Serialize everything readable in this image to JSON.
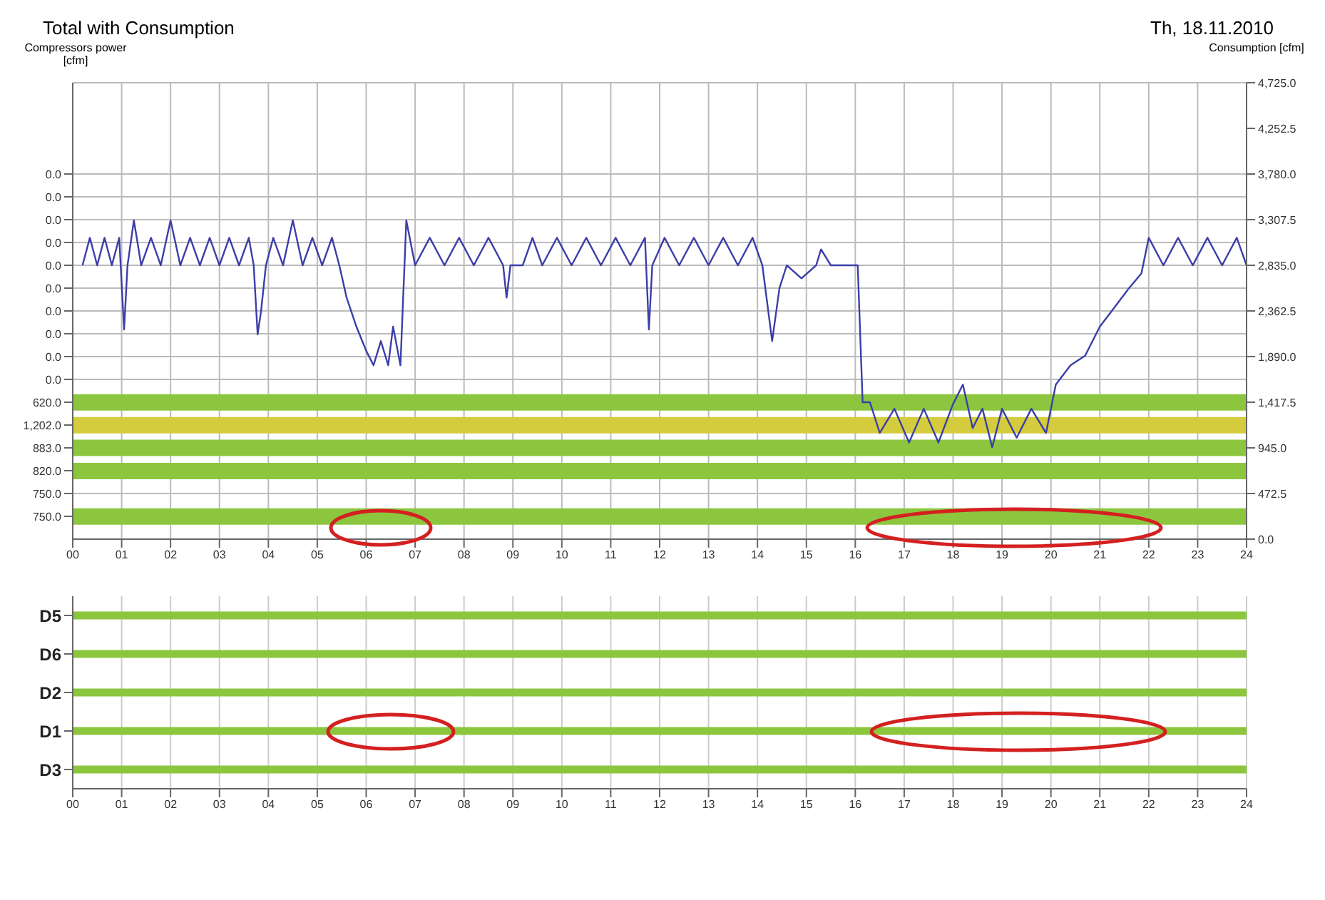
{
  "chart_data": [
    {
      "type": "line",
      "title": "Total with Consumption",
      "ylabel": "Compressors power [cfm]",
      "y2label": "Consumption [cfm]",
      "annotations": [
        "Th, 18.11.2010",
        "0.0",
        "0.0",
        "0.0",
        "0.0",
        "0.0",
        "0.0",
        "0.0",
        "0.0",
        "0.0",
        "0.0",
        "620.0",
        "1,202.0",
        "883.0",
        "820.0",
        "750.0",
        "750.0"
      ],
      "xlim": [
        0,
        24
      ],
      "xticks": [
        {
          "value": 0,
          "label": "00"
        },
        {
          "value": 1,
          "label": "01"
        },
        {
          "value": 2,
          "label": "02"
        },
        {
          "value": 3,
          "label": "03"
        },
        {
          "value": 4,
          "label": "04"
        },
        {
          "value": 5,
          "label": "05"
        },
        {
          "value": 6,
          "label": "06"
        },
        {
          "value": 7,
          "label": "07"
        },
        {
          "value": 8,
          "label": "08"
        },
        {
          "value": 9,
          "label": "09"
        },
        {
          "value": 10,
          "label": "10"
        },
        {
          "value": 11,
          "label": "11"
        },
        {
          "value": 12,
          "label": "12"
        },
        {
          "value": 13,
          "label": "13"
        },
        {
          "value": 14,
          "label": "14"
        },
        {
          "value": 15,
          "label": "15"
        },
        {
          "value": 16,
          "label": "16"
        },
        {
          "value": 17,
          "label": "17"
        },
        {
          "value": 18,
          "label": "18"
        },
        {
          "value": 19,
          "label": "19"
        },
        {
          "value": 20,
          "label": "20"
        },
        {
          "value": 21,
          "label": "21"
        },
        {
          "value": 22,
          "label": "22"
        },
        {
          "value": 23,
          "label": "23"
        },
        {
          "value": 24,
          "label": "24"
        }
      ],
      "y2lim": [
        0,
        4725
      ],
      "y2ticks": [
        {
          "value": 0,
          "label": "0.0"
        },
        {
          "value": 472.5,
          "label": "472.5"
        },
        {
          "value": 945,
          "label": "945.0"
        },
        {
          "value": 1417.5,
          "label": "1,417.5"
        },
        {
          "value": 1890,
          "label": "1,890.0"
        },
        {
          "value": 2362.5,
          "label": "2,362.5"
        },
        {
          "value": 2835,
          "label": "2,835.0"
        },
        {
          "value": 3307.5,
          "label": "3,307.5"
        },
        {
          "value": 3780,
          "label": "3,780.0"
        },
        {
          "value": 4252.5,
          "label": "4,252.5"
        },
        {
          "value": 4725,
          "label": "4,725.0"
        }
      ],
      "grid": true,
      "bands": [
        {
          "axis": "y2",
          "from": 1330,
          "to": 1500,
          "color": "#8cc63f"
        },
        {
          "axis": "y2",
          "from": 1095,
          "to": 1265,
          "color": "#d4cc3c"
        },
        {
          "axis": "y2",
          "from": 860,
          "to": 1030,
          "color": "#8cc63f"
        },
        {
          "axis": "y2",
          "from": 620,
          "to": 790,
          "color": "#8cc63f"
        },
        {
          "axis": "y2",
          "from": 150,
          "to": 320,
          "color": "#8cc63f"
        }
      ],
      "series": [
        {
          "axis": "y2",
          "color": "#3b3fa8",
          "x": [
            0.2,
            0.35,
            0.5,
            0.65,
            0.8,
            0.95,
            1.05,
            1.12,
            1.25,
            1.4,
            1.6,
            1.8,
            2.0,
            2.2,
            2.4,
            2.6,
            2.8,
            3.0,
            3.2,
            3.4,
            3.6,
            3.7,
            3.78,
            3.85,
            3.95,
            4.1,
            4.3,
            4.5,
            4.7,
            4.9,
            5.1,
            5.3,
            5.45,
            5.6,
            5.8,
            6.0,
            6.15,
            6.3,
            6.45,
            6.55,
            6.7,
            6.82,
            7.0,
            7.3,
            7.6,
            7.9,
            8.2,
            8.5,
            8.8,
            8.87,
            8.95,
            9.2,
            9.4,
            9.6,
            9.9,
            10.2,
            10.5,
            10.8,
            11.1,
            11.4,
            11.7,
            11.78,
            11.85,
            12.1,
            12.4,
            12.7,
            13.0,
            13.3,
            13.6,
            13.9,
            14.1,
            14.3,
            14.45,
            14.6,
            14.9,
            15.2,
            15.3,
            15.5,
            16.05,
            16.15,
            16.3,
            16.5,
            16.8,
            17.1,
            17.4,
            17.7,
            18.0,
            18.2,
            18.4,
            18.6,
            18.8,
            19.0,
            19.3,
            19.6,
            19.9,
            20.1,
            20.4,
            20.7,
            21.0,
            21.3,
            21.6,
            21.85,
            22.0,
            22.3,
            22.6,
            22.9,
            23.2,
            23.5,
            23.8,
            24.0
          ],
          "values": [
            2835,
            3120,
            2835,
            3120,
            2835,
            3120,
            2170,
            2835,
            3300,
            2835,
            3120,
            2835,
            3300,
            2835,
            3120,
            2835,
            3120,
            2835,
            3120,
            2835,
            3120,
            2835,
            2120,
            2360,
            2835,
            3120,
            2835,
            3300,
            2835,
            3120,
            2835,
            3120,
            2835,
            2500,
            2200,
            1950,
            1800,
            2050,
            1800,
            2200,
            1800,
            3300,
            2835,
            3120,
            2835,
            3120,
            2835,
            3120,
            2835,
            2500,
            2835,
            2835,
            3120,
            2835,
            3120,
            2835,
            3120,
            2835,
            3120,
            2835,
            3120,
            2170,
            2835,
            3120,
            2835,
            3120,
            2835,
            3120,
            2835,
            3120,
            2835,
            2050,
            2600,
            2835,
            2700,
            2835,
            3000,
            2835,
            2835,
            1417,
            1417,
            1100,
            1350,
            1000,
            1350,
            1000,
            1400,
            1600,
            1150,
            1350,
            950,
            1350,
            1050,
            1350,
            1100,
            1600,
            1800,
            1900,
            2200,
            2400,
            2600,
            2750,
            3120,
            2835,
            3120,
            2835,
            3120,
            2835,
            3120,
            2835
          ]
        }
      ]
    },
    {
      "type": "bar",
      "orientation": "horizontal",
      "categories": [
        "D5",
        "D6",
        "D2",
        "D1",
        "D3"
      ],
      "values": [
        24,
        24,
        24,
        24,
        24
      ],
      "color": "#8cc63f",
      "grid": "x",
      "xlim": [
        0,
        24
      ],
      "xticks": [
        {
          "value": 0,
          "label": "00"
        },
        {
          "value": 1,
          "label": "01"
        },
        {
          "value": 2,
          "label": "02"
        },
        {
          "value": 3,
          "label": "03"
        },
        {
          "value": 4,
          "label": "04"
        },
        {
          "value": 5,
          "label": "05"
        },
        {
          "value": 6,
          "label": "06"
        },
        {
          "value": 7,
          "label": "07"
        },
        {
          "value": 8,
          "label": "08"
        },
        {
          "value": 9,
          "label": "09"
        },
        {
          "value": 10,
          "label": "10"
        },
        {
          "value": 11,
          "label": "11"
        },
        {
          "value": 12,
          "label": "12"
        },
        {
          "value": 13,
          "label": "13"
        },
        {
          "value": 14,
          "label": "14"
        },
        {
          "value": 15,
          "label": "15"
        },
        {
          "value": 16,
          "label": "16"
        },
        {
          "value": 17,
          "label": "17"
        },
        {
          "value": 18,
          "label": "18"
        },
        {
          "value": 19,
          "label": "19"
        },
        {
          "value": 20,
          "label": "20"
        },
        {
          "value": 21,
          "label": "21"
        },
        {
          "value": 22,
          "label": "22"
        },
        {
          "value": 23,
          "label": "23"
        },
        {
          "value": 24,
          "label": "24"
        }
      ]
    }
  ]
}
